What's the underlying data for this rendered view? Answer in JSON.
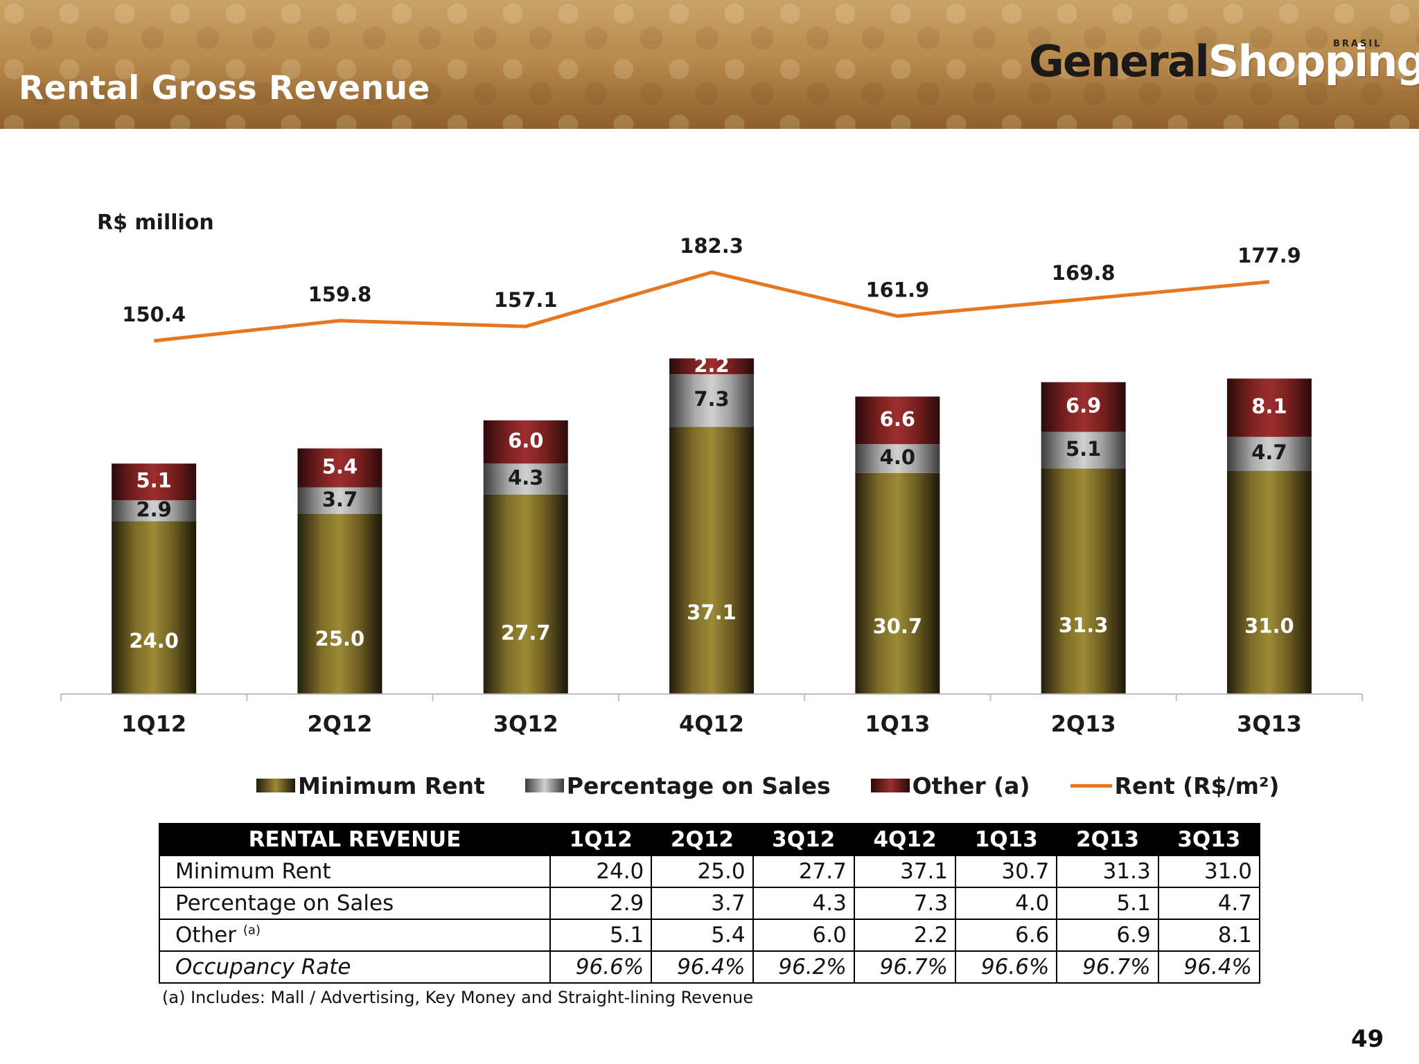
{
  "header": {
    "title": "Rental Gross Revenue",
    "logo_main": "General",
    "logo_accent": "Shopping",
    "logo_sub": "BRASIL"
  },
  "colors": {
    "minimum_rent": "#8a7a2e",
    "percentage_on_sales": "#b8b8b8",
    "other": "#8e2a2a",
    "rent_line": "#e8761e",
    "label_on_dark": "#ffffff",
    "label_on_light": "#1a1a1a"
  },
  "chart_data": {
    "type": "bar",
    "subtype": "stacked-bar-with-line",
    "unit_label": "R$ million",
    "categories": [
      "1Q12",
      "2Q12",
      "3Q12",
      "4Q12",
      "1Q13",
      "2Q13",
      "3Q13"
    ],
    "series": [
      {
        "name": "Minimum Rent",
        "values": [
          24.0,
          25.0,
          27.7,
          37.1,
          30.7,
          31.3,
          31.0
        ]
      },
      {
        "name": "Percentage on Sales",
        "values": [
          2.9,
          3.7,
          4.3,
          7.3,
          4.0,
          5.1,
          4.7
        ]
      },
      {
        "name": "Other (a)",
        "values": [
          5.1,
          5.4,
          6.0,
          2.2,
          6.6,
          6.9,
          8.1
        ]
      }
    ],
    "line_series": {
      "name": "Rent (R$/m²)",
      "values": [
        150.4,
        159.8,
        157.1,
        182.3,
        161.9,
        169.8,
        177.9
      ]
    },
    "legend_position": "bottom",
    "grid": false
  },
  "legend": [
    {
      "label": "Minimum Rent",
      "kind": "swatch"
    },
    {
      "label": "Percentage on Sales",
      "kind": "swatch"
    },
    {
      "label": "Other (a)",
      "kind": "swatch"
    },
    {
      "label": "Rent (R$/m²)",
      "kind": "line"
    }
  ],
  "table": {
    "header_label": "RENTAL REVENUE",
    "columns": [
      "1Q12",
      "2Q12",
      "3Q12",
      "4Q12",
      "1Q13",
      "2Q13",
      "3Q13"
    ],
    "rows": [
      {
        "label": "Minimum Rent",
        "values": [
          "24.0",
          "25.0",
          "27.7",
          "37.1",
          "30.7",
          "31.3",
          "31.0"
        ]
      },
      {
        "label": "Percentage on Sales",
        "values": [
          "2.9",
          "3.7",
          "4.3",
          "7.3",
          "4.0",
          "5.1",
          "4.7"
        ]
      },
      {
        "label": "Other",
        "label_sup": "(a)",
        "values": [
          "5.1",
          "5.4",
          "6.0",
          "2.2",
          "6.6",
          "6.9",
          "8.1"
        ]
      },
      {
        "label": "Occupancy Rate",
        "values": [
          "96.6%",
          "96.4%",
          "96.2%",
          "96.7%",
          "96.6%",
          "96.7%",
          "96.4%"
        ]
      }
    ]
  },
  "footnote": "(a) Includes: Mall / Advertising, Key Money and Straight-lining Revenue",
  "page_number": "49"
}
